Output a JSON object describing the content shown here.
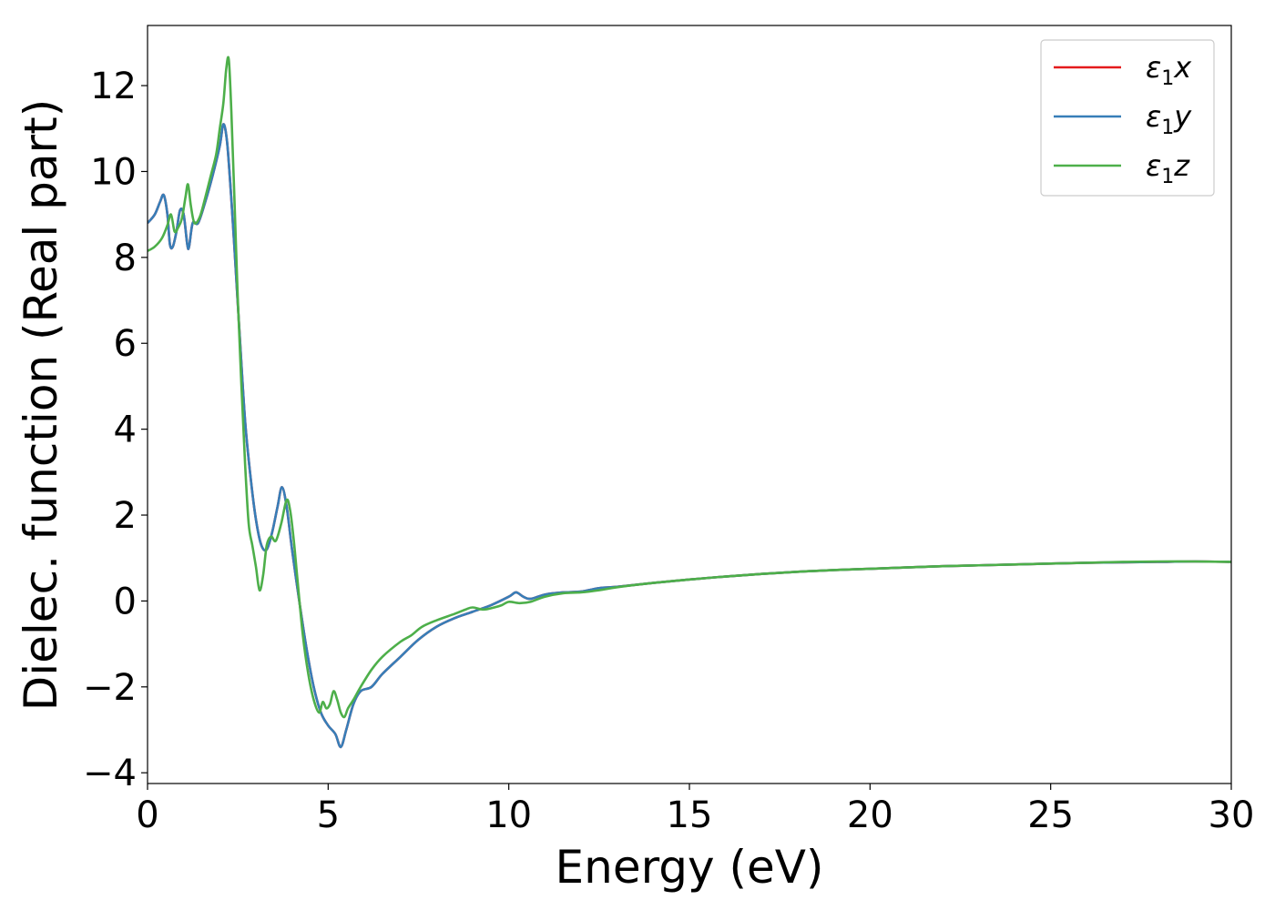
{
  "chart_data": {
    "type": "line",
    "title": "",
    "xlabel": "Energy (eV)",
    "ylabel": "Dielec. function (Real part)",
    "xlim": [
      0,
      30
    ],
    "ylim": [
      -4.25,
      13.4
    ],
    "xticks": [
      0,
      5,
      10,
      15,
      20,
      25,
      30
    ],
    "yticks": [
      -4,
      -2,
      0,
      2,
      4,
      6,
      8,
      10,
      12
    ],
    "xtick_labels": [
      "0",
      "5",
      "10",
      "15",
      "20",
      "25",
      "30"
    ],
    "ytick_labels": [
      "−4",
      "−2",
      "0",
      "2",
      "4",
      "6",
      "8",
      "10",
      "12"
    ],
    "grid": false,
    "legend_position": "top-right",
    "series": [
      {
        "name": "ε₁x",
        "legend_base": "ε",
        "legend_sub": "1",
        "legend_var": "x",
        "color": "#e41a1c",
        "x": [
          0,
          0.2,
          0.35,
          0.45,
          0.55,
          0.62,
          0.7,
          0.8,
          0.9,
          1.0,
          1.1,
          1.15,
          1.25,
          1.4,
          1.6,
          1.8,
          2.0,
          2.1,
          2.2,
          2.3,
          2.4,
          2.55,
          2.7,
          2.85,
          3.0,
          3.15,
          3.3,
          3.45,
          3.6,
          3.72,
          3.85,
          4.0,
          4.2,
          4.4,
          4.6,
          4.8,
          5.0,
          5.2,
          5.35,
          5.5,
          5.7,
          5.9,
          6.2,
          6.5,
          7.0,
          7.5,
          8.0,
          8.5,
          9.0,
          9.5,
          10.0,
          10.2,
          10.4,
          10.6,
          11.0,
          11.5,
          12.0,
          12.5,
          13.0,
          14.0,
          15.0,
          16.0,
          17.0,
          18.0,
          19.0,
          20.0,
          21.0,
          22.0,
          23.0,
          24.0,
          25.0,
          26.0,
          27.0,
          28.0,
          29.0,
          30.0
        ],
        "y": [
          8.8,
          9.0,
          9.3,
          9.45,
          9.0,
          8.3,
          8.25,
          8.6,
          9.1,
          9.0,
          8.3,
          8.25,
          8.8,
          8.8,
          9.3,
          9.9,
          10.6,
          11.1,
          10.7,
          9.6,
          8.3,
          6.2,
          4.2,
          2.9,
          1.9,
          1.3,
          1.2,
          1.6,
          2.2,
          2.65,
          2.2,
          1.2,
          0.0,
          -1.1,
          -2.0,
          -2.6,
          -2.9,
          -3.1,
          -3.4,
          -3.0,
          -2.4,
          -2.1,
          -2.0,
          -1.7,
          -1.3,
          -0.9,
          -0.6,
          -0.4,
          -0.25,
          -0.1,
          0.1,
          0.2,
          0.1,
          0.05,
          0.15,
          0.2,
          0.22,
          0.3,
          0.33,
          0.42,
          0.5,
          0.57,
          0.63,
          0.68,
          0.72,
          0.75,
          0.78,
          0.81,
          0.83,
          0.85,
          0.87,
          0.89,
          0.9,
          0.91,
          0.92,
          0.91
        ]
      },
      {
        "name": "ε₁y",
        "legend_base": "ε",
        "legend_sub": "1",
        "legend_var": "y",
        "color": "#377eb8",
        "x": [
          0,
          0.2,
          0.35,
          0.45,
          0.55,
          0.62,
          0.7,
          0.8,
          0.9,
          1.0,
          1.1,
          1.15,
          1.25,
          1.4,
          1.6,
          1.8,
          2.0,
          2.1,
          2.2,
          2.3,
          2.4,
          2.55,
          2.7,
          2.85,
          3.0,
          3.15,
          3.3,
          3.45,
          3.6,
          3.72,
          3.85,
          4.0,
          4.2,
          4.4,
          4.6,
          4.8,
          5.0,
          5.2,
          5.35,
          5.5,
          5.7,
          5.9,
          6.2,
          6.5,
          7.0,
          7.5,
          8.0,
          8.5,
          9.0,
          9.5,
          10.0,
          10.2,
          10.4,
          10.6,
          11.0,
          11.5,
          12.0,
          12.5,
          13.0,
          14.0,
          15.0,
          16.0,
          17.0,
          18.0,
          19.0,
          20.0,
          21.0,
          22.0,
          23.0,
          24.0,
          25.0,
          26.0,
          27.0,
          28.0,
          29.0,
          30.0
        ],
        "y": [
          8.8,
          9.0,
          9.3,
          9.45,
          9.0,
          8.3,
          8.25,
          8.6,
          9.1,
          9.0,
          8.3,
          8.25,
          8.8,
          8.8,
          9.3,
          9.9,
          10.6,
          11.1,
          10.7,
          9.6,
          8.3,
          6.2,
          4.2,
          2.9,
          1.9,
          1.3,
          1.2,
          1.6,
          2.2,
          2.65,
          2.2,
          1.2,
          0.0,
          -1.1,
          -2.0,
          -2.6,
          -2.9,
          -3.1,
          -3.4,
          -3.0,
          -2.4,
          -2.1,
          -2.0,
          -1.7,
          -1.3,
          -0.9,
          -0.6,
          -0.4,
          -0.25,
          -0.1,
          0.1,
          0.2,
          0.1,
          0.05,
          0.15,
          0.2,
          0.22,
          0.3,
          0.33,
          0.42,
          0.5,
          0.57,
          0.63,
          0.68,
          0.72,
          0.75,
          0.78,
          0.81,
          0.83,
          0.85,
          0.87,
          0.89,
          0.9,
          0.91,
          0.92,
          0.91
        ]
      },
      {
        "name": "ε₁z",
        "legend_base": "ε",
        "legend_sub": "1",
        "legend_var": "z",
        "color": "#4daf4a",
        "x": [
          0,
          0.2,
          0.4,
          0.55,
          0.65,
          0.75,
          0.85,
          0.95,
          1.05,
          1.12,
          1.2,
          1.3,
          1.45,
          1.6,
          1.75,
          1.9,
          2.0,
          2.1,
          2.18,
          2.25,
          2.32,
          2.4,
          2.5,
          2.6,
          2.7,
          2.8,
          2.9,
          3.0,
          3.1,
          3.2,
          3.3,
          3.42,
          3.55,
          3.7,
          3.85,
          3.95,
          4.05,
          4.15,
          4.3,
          4.45,
          4.6,
          4.75,
          4.85,
          4.95,
          5.05,
          5.15,
          5.25,
          5.35,
          5.45,
          5.55,
          5.7,
          5.9,
          6.2,
          6.5,
          7.0,
          7.3,
          7.6,
          8.0,
          8.5,
          8.8,
          9.0,
          9.3,
          9.6,
          9.8,
          10.0,
          10.3,
          10.6,
          11.0,
          11.5,
          12.0,
          12.5,
          13.0,
          14.0,
          15.0,
          16.0,
          17.0,
          18.0,
          19.0,
          20.0,
          21.0,
          22.0,
          23.0,
          24.0,
          25.0,
          26.0,
          27.0,
          28.0,
          29.0,
          30.0
        ],
        "y": [
          8.15,
          8.25,
          8.45,
          8.75,
          9.0,
          8.6,
          8.7,
          8.9,
          9.4,
          9.7,
          9.2,
          8.8,
          8.95,
          9.4,
          9.9,
          10.4,
          11.0,
          11.6,
          12.4,
          12.6,
          11.4,
          9.5,
          7.0,
          5.0,
          3.2,
          1.8,
          1.3,
          0.8,
          0.25,
          0.6,
          1.3,
          1.5,
          1.4,
          1.8,
          2.35,
          2.1,
          1.4,
          0.5,
          -0.8,
          -1.7,
          -2.3,
          -2.6,
          -2.35,
          -2.5,
          -2.4,
          -2.1,
          -2.3,
          -2.6,
          -2.7,
          -2.5,
          -2.3,
          -2.0,
          -1.6,
          -1.3,
          -0.95,
          -0.8,
          -0.6,
          -0.45,
          -0.3,
          -0.2,
          -0.15,
          -0.2,
          -0.15,
          -0.1,
          -0.02,
          -0.05,
          -0.02,
          0.1,
          0.18,
          0.2,
          0.25,
          0.32,
          0.42,
          0.5,
          0.57,
          0.63,
          0.68,
          0.72,
          0.75,
          0.78,
          0.81,
          0.83,
          0.85,
          0.87,
          0.89,
          0.91,
          0.92,
          0.92,
          0.91
        ]
      }
    ]
  }
}
